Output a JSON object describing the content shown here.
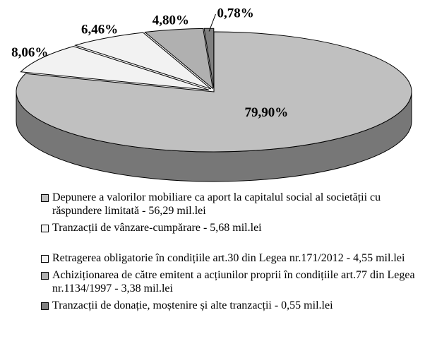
{
  "chart_data": {
    "type": "pie",
    "categories": [
      "Depunere a valorilor mobiliare ca aport la capitalul social al societății cu răspundere limitată - 56,29 mil.lei",
      "Tranzacții de vânzare-cumpărare - 5,68 mil.lei",
      "Retragerea obligatorie în condițiile art.30 din Legea nr.171/2012 - 4,55 mil.lei",
      "Achiziționarea de către emitent a acțiunilor proprii în condițiile art.77 din Legea nr.1134/1997 - 3,38 mil.lei",
      "Tranzacții de donație, moștenire și alte tranzacții - 0,55 mil.lei"
    ],
    "values": [
      79.9,
      8.06,
      6.46,
      4.8,
      0.78
    ],
    "value_labels": [
      "79,90%",
      "8,06%",
      "6,46%",
      "4,80%",
      "0,78%"
    ],
    "colors": [
      "#c0c0c0",
      "#f2f2f2",
      "#f2f2f2",
      "#b0b0b0",
      "#808080"
    ]
  }
}
